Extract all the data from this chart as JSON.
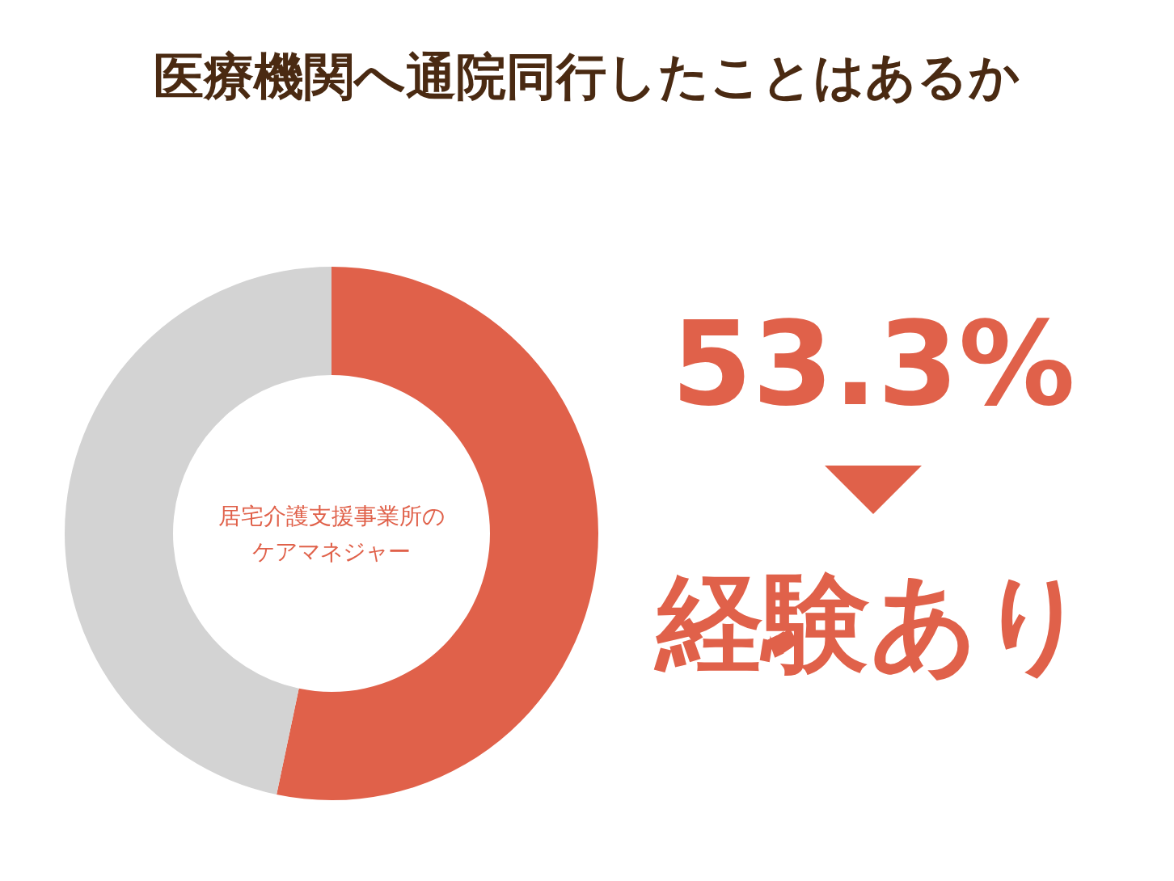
{
  "chart_data": {
    "type": "donut",
    "title": "医療機関へ通院同行したことはあるか",
    "categories": [
      "経験あり",
      null
    ],
    "values": [
      53.3,
      46.7
    ],
    "colors": [
      "#e0614a",
      "#d3d3d3"
    ],
    "value_labels": [
      "53.3%",
      null
    ],
    "annotations": [
      "居宅介護支援事業所の",
      "ケアマネジャー"
    ],
    "legend": "right"
  }
}
